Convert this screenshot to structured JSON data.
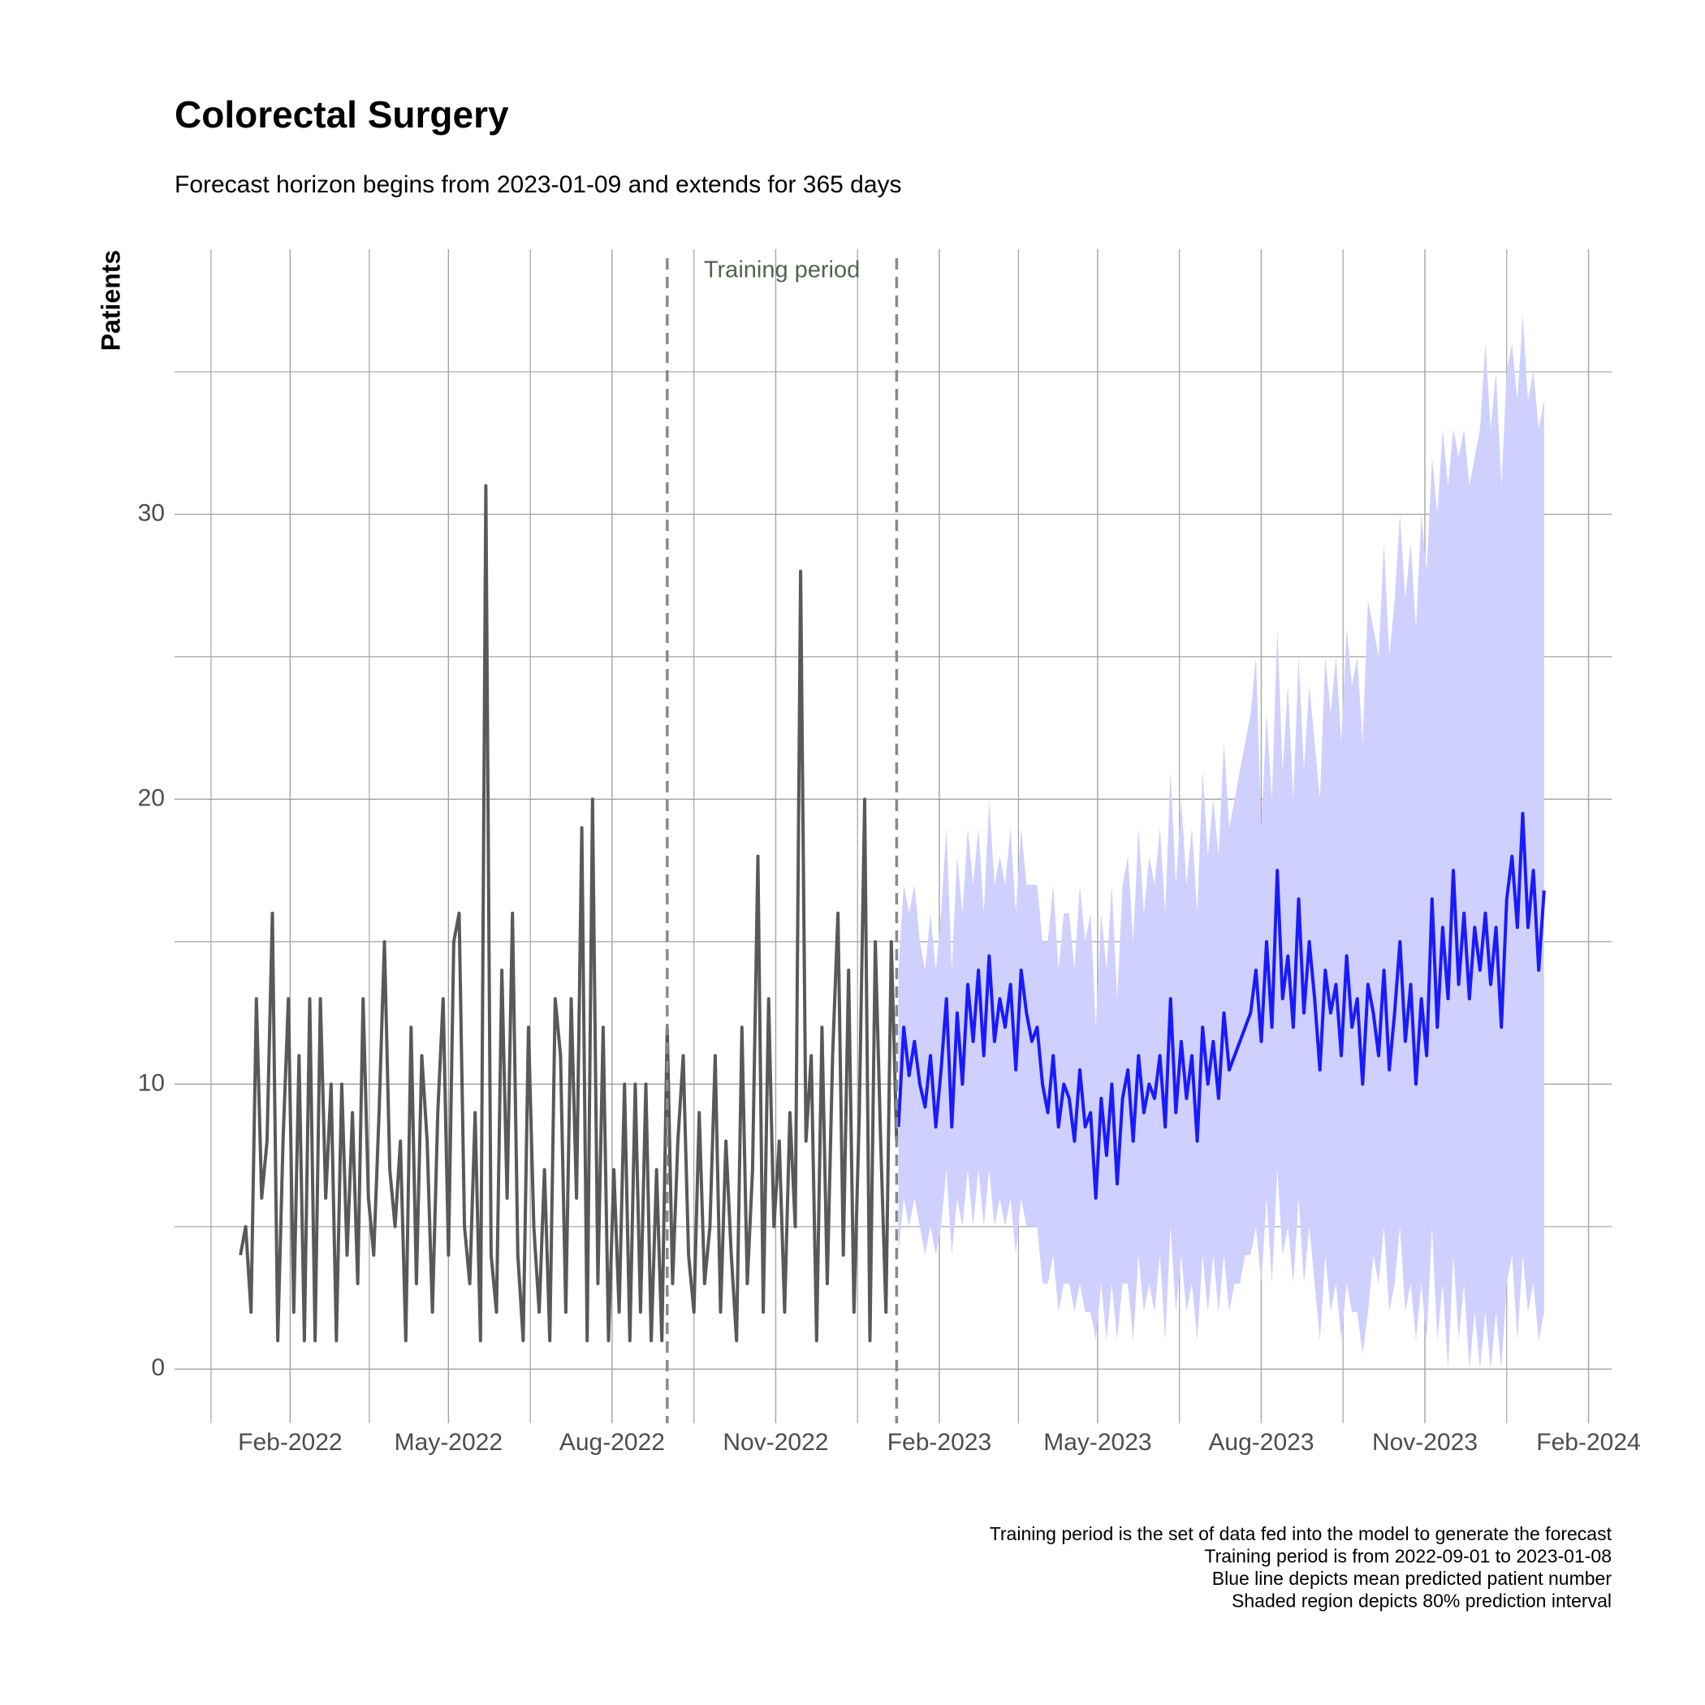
{
  "chart_data": {
    "type": "line",
    "title": "Colorectal Surgery",
    "subtitle": "Forecast horizon begins from 2023-01-09 and extends for 365 days",
    "y_label": "Patients",
    "annotation": "Training period",
    "caption": [
      "Training period is the set of data fed into the model to generate the forecast",
      "Training period is from 2022-09-01 to 2023-01-08",
      "Blue line depicts mean predicted patient number",
      "Shaded region depicts 80% prediction interval"
    ],
    "xlim": [
      "2021-11-28",
      "2024-02-14"
    ],
    "xticks": [
      {
        "value": "2022-02-01",
        "label": "Feb-2022"
      },
      {
        "value": "2022-05-01",
        "label": "May-2022"
      },
      {
        "value": "2022-08-01",
        "label": "Aug-2022"
      },
      {
        "value": "2022-11-01",
        "label": "Nov-2022"
      },
      {
        "value": "2023-02-01",
        "label": "Feb-2023"
      },
      {
        "value": "2023-05-01",
        "label": "May-2023"
      },
      {
        "value": "2023-08-01",
        "label": "Aug-2023"
      },
      {
        "value": "2023-11-01",
        "label": "Nov-2023"
      },
      {
        "value": "2024-02-01",
        "label": "Feb-2024"
      }
    ],
    "ylim": [
      -1.9,
      39.3
    ],
    "yticks": [
      0,
      10,
      20,
      30
    ],
    "grid": true,
    "vlines": [
      "2022-09-01",
      "2023-01-08"
    ],
    "series": [
      {
        "color": "#595959",
        "x": [
          "2022-01-04",
          "2022-01-07",
          "2022-01-10",
          "2022-01-13",
          "2022-01-16",
          "2022-01-19",
          "2022-01-22",
          "2022-01-25",
          "2022-01-28",
          "2022-01-31",
          "2022-02-03",
          "2022-02-06",
          "2022-02-09",
          "2022-02-12",
          "2022-02-15",
          "2022-02-18",
          "2022-02-21",
          "2022-02-24",
          "2022-02-27",
          "2022-03-02",
          "2022-03-05",
          "2022-03-08",
          "2022-03-11",
          "2022-03-14",
          "2022-03-17",
          "2022-03-20",
          "2022-03-23",
          "2022-03-26",
          "2022-03-29",
          "2022-04-01",
          "2022-04-04",
          "2022-04-07",
          "2022-04-10",
          "2022-04-13",
          "2022-04-16",
          "2022-04-19",
          "2022-04-22",
          "2022-04-25",
          "2022-04-28",
          "2022-05-01",
          "2022-05-04",
          "2022-05-07",
          "2022-05-10",
          "2022-05-13",
          "2022-05-16",
          "2022-05-19",
          "2022-05-22",
          "2022-05-25",
          "2022-05-28",
          "2022-05-31",
          "2022-06-03",
          "2022-06-06",
          "2022-06-09",
          "2022-06-12",
          "2022-06-15",
          "2022-06-18",
          "2022-06-21",
          "2022-06-24",
          "2022-06-27",
          "2022-06-30",
          "2022-07-03",
          "2022-07-06",
          "2022-07-09",
          "2022-07-12",
          "2022-07-15",
          "2022-07-18",
          "2022-07-21",
          "2022-07-24",
          "2022-07-27",
          "2022-07-30",
          "2022-08-02",
          "2022-08-05",
          "2022-08-08",
          "2022-08-11",
          "2022-08-14",
          "2022-08-17",
          "2022-08-20",
          "2022-08-23",
          "2022-08-26",
          "2022-08-29",
          "2022-09-01",
          "2022-09-04",
          "2022-09-07",
          "2022-09-10",
          "2022-09-13",
          "2022-09-16",
          "2022-09-19",
          "2022-09-22",
          "2022-09-25",
          "2022-09-28",
          "2022-10-01",
          "2022-10-04",
          "2022-10-07",
          "2022-10-10",
          "2022-10-13",
          "2022-10-16",
          "2022-10-19",
          "2022-10-22",
          "2022-10-25",
          "2022-10-28",
          "2022-10-31",
          "2022-11-03",
          "2022-11-06",
          "2022-11-09",
          "2022-11-12",
          "2022-11-15",
          "2022-11-18",
          "2022-11-21",
          "2022-11-24",
          "2022-11-27",
          "2022-11-30",
          "2022-12-03",
          "2022-12-06",
          "2022-12-09",
          "2022-12-12",
          "2022-12-15",
          "2022-12-18",
          "2022-12-21",
          "2022-12-24",
          "2022-12-27",
          "2022-12-30",
          "2023-01-02",
          "2023-01-05",
          "2023-01-08"
        ],
        "values": [
          4,
          5,
          2,
          13,
          6,
          8,
          16,
          1,
          8,
          13,
          2,
          11,
          1,
          13,
          1,
          13,
          6,
          10,
          1,
          10,
          4,
          9,
          3,
          13,
          6,
          4,
          9,
          15,
          7,
          5,
          8,
          1,
          12,
          3,
          11,
          8,
          2,
          9,
          13,
          4,
          15,
          16,
          5,
          3,
          9,
          1,
          31,
          4,
          2,
          14,
          6,
          16,
          4,
          1,
          12,
          5,
          2,
          7,
          1,
          13,
          11,
          2,
          13,
          6,
          19,
          1,
          20,
          3,
          12,
          1,
          7,
          2,
          10,
          1,
          10,
          2,
          10,
          1,
          7,
          1,
          12,
          3,
          8,
          11,
          4,
          2,
          9,
          3,
          5,
          11,
          2,
          8,
          4,
          1,
          12,
          3,
          7,
          18,
          2,
          13,
          5,
          8,
          2,
          9,
          5,
          28,
          8,
          11,
          1,
          12,
          3,
          11,
          16,
          4,
          14,
          2,
          9,
          20,
          1,
          15,
          8,
          2,
          15,
          8
        ]
      },
      {
        "color": "#1a1aff",
        "band_color": "#d0d0ff",
        "x": [
          "2023-01-09",
          "2023-01-12",
          "2023-01-15",
          "2023-01-18",
          "2023-01-21",
          "2023-01-24",
          "2023-01-27",
          "2023-01-30",
          "2023-02-02",
          "2023-02-05",
          "2023-02-08",
          "2023-02-11",
          "2023-02-14",
          "2023-02-17",
          "2023-02-20",
          "2023-02-23",
          "2023-02-26",
          "2023-03-01",
          "2023-03-04",
          "2023-03-07",
          "2023-03-10",
          "2023-03-13",
          "2023-03-16",
          "2023-03-19",
          "2023-03-22",
          "2023-03-25",
          "2023-03-28",
          "2023-03-31",
          "2023-04-03",
          "2023-04-06",
          "2023-04-09",
          "2023-04-12",
          "2023-04-15",
          "2023-04-18",
          "2023-04-21",
          "2023-04-24",
          "2023-04-27",
          "2023-04-30",
          "2023-05-03",
          "2023-05-06",
          "2023-05-09",
          "2023-05-12",
          "2023-05-15",
          "2023-05-18",
          "2023-05-21",
          "2023-05-24",
          "2023-05-27",
          "2023-05-30",
          "2023-06-02",
          "2023-06-05",
          "2023-06-08",
          "2023-06-11",
          "2023-06-14",
          "2023-06-17",
          "2023-06-20",
          "2023-06-23",
          "2023-06-26",
          "2023-06-29",
          "2023-07-02",
          "2023-07-05",
          "2023-07-08",
          "2023-07-11",
          "2023-07-14",
          "2023-07-17",
          "2023-07-20",
          "2023-07-23",
          "2023-07-26",
          "2023-07-29",
          "2023-08-01",
          "2023-08-04",
          "2023-08-07",
          "2023-08-10",
          "2023-08-13",
          "2023-08-16",
          "2023-08-19",
          "2023-08-22",
          "2023-08-25",
          "2023-08-28",
          "2023-08-31",
          "2023-09-03",
          "2023-09-06",
          "2023-09-09",
          "2023-09-12",
          "2023-09-15",
          "2023-09-18",
          "2023-09-21",
          "2023-09-24",
          "2023-09-27",
          "2023-09-30",
          "2023-10-03",
          "2023-10-06",
          "2023-10-09",
          "2023-10-12",
          "2023-10-15",
          "2023-10-18",
          "2023-10-21",
          "2023-10-24",
          "2023-10-27",
          "2023-10-30",
          "2023-11-02",
          "2023-11-05",
          "2023-11-08",
          "2023-11-11",
          "2023-11-14",
          "2023-11-17",
          "2023-11-20",
          "2023-11-23",
          "2023-11-26",
          "2023-11-29",
          "2023-12-02",
          "2023-12-05",
          "2023-12-08",
          "2023-12-11",
          "2023-12-14",
          "2023-12-17",
          "2023-12-20",
          "2023-12-23",
          "2023-12-26",
          "2023-12-29",
          "2024-01-01",
          "2024-01-04",
          "2024-01-07"
        ],
        "values": [
          8.5,
          12.0,
          10.3,
          11.5,
          10.0,
          9.2,
          11.0,
          8.5,
          10.5,
          13.0,
          8.5,
          12.5,
          10.0,
          13.5,
          11.5,
          14.0,
          11.0,
          14.5,
          11.5,
          13.0,
          12.0,
          13.5,
          10.5,
          14.0,
          12.5,
          11.5,
          12.0,
          10.0,
          9.0,
          11.0,
          8.5,
          10.0,
          9.5,
          8.0,
          10.5,
          8.5,
          9.0,
          6.0,
          9.5,
          7.5,
          10.0,
          6.5,
          9.5,
          10.5,
          8.0,
          11.0,
          9.0,
          10.0,
          9.5,
          11.0,
          8.5,
          13.0,
          9.0,
          11.5,
          9.5,
          11.0,
          8.0,
          12.0,
          10.0,
          11.5,
          9.5,
          12.5,
          10.5,
          11.0,
          11.5,
          12.0,
          12.5,
          14.0,
          11.5,
          15.0,
          12.0,
          17.5,
          13.0,
          14.5,
          12.0,
          16.5,
          12.5,
          15.0,
          13.0,
          10.5,
          14.0,
          12.5,
          13.5,
          11.0,
          14.5,
          12.0,
          13.0,
          10.0,
          13.5,
          12.5,
          11.0,
          14.0,
          10.5,
          12.5,
          15.0,
          11.5,
          13.5,
          10.0,
          13.0,
          11.0,
          16.5,
          12.0,
          15.5,
          13.0,
          17.5,
          13.5,
          16.0,
          13.0,
          15.5,
          14.0,
          16.0,
          13.5,
          15.5,
          12.0,
          16.5,
          18.0,
          15.5,
          19.5,
          15.5,
          17.5,
          14.0,
          16.8
        ],
        "lower": [
          4,
          6,
          5,
          6,
          5,
          4,
          5,
          4,
          5,
          7,
          4,
          6,
          5,
          7,
          5,
          7,
          5,
          7,
          5,
          6,
          5,
          6,
          4,
          6,
          5,
          5,
          5,
          3,
          3,
          4,
          2,
          3,
          3,
          2,
          3,
          2,
          2,
          1,
          3,
          1,
          3,
          1,
          3,
          3,
          1,
          4,
          2,
          3,
          2,
          4,
          1,
          5,
          2,
          4,
          2,
          3,
          1,
          4,
          2,
          4,
          2,
          4,
          2,
          3,
          3,
          4,
          4,
          5,
          3,
          6,
          3,
          7,
          4,
          5,
          3,
          6,
          3,
          5,
          3,
          1,
          4,
          2,
          3,
          1,
          3,
          2,
          2,
          0.5,
          2,
          4,
          3,
          5,
          2,
          3,
          5,
          2,
          3,
          1,
          3,
          1,
          5,
          1,
          3,
          0,
          4,
          1,
          3,
          0,
          2,
          0,
          2,
          0,
          2,
          0,
          3,
          4,
          1,
          4,
          2,
          3,
          1,
          2
        ],
        "upper": [
          14,
          17,
          16,
          17,
          15,
          14,
          16,
          14,
          16,
          19,
          14,
          18,
          16,
          19,
          17,
          19,
          16,
          20,
          17,
          18,
          17,
          19,
          16,
          19,
          17,
          17,
          17,
          15,
          15,
          17,
          14,
          16,
          16,
          14,
          17,
          15,
          16,
          12,
          16,
          14,
          17,
          13,
          17,
          18,
          15,
          19,
          16,
          18,
          17,
          19,
          16,
          21,
          17,
          20,
          17,
          19,
          16,
          21,
          18,
          20,
          18,
          22,
          19,
          20,
          21,
          22,
          23,
          25,
          19,
          23,
          20,
          26,
          21,
          24,
          20,
          25,
          21,
          24,
          22,
          20,
          25,
          23,
          25,
          22,
          26,
          24,
          25,
          22,
          27,
          26,
          25,
          29,
          25,
          27,
          30,
          27,
          29,
          26,
          30,
          28,
          32,
          30,
          33,
          31,
          33,
          32,
          33,
          31,
          32,
          33,
          36,
          33,
          35,
          31,
          35,
          36,
          34,
          37,
          34,
          35,
          33,
          34
        ]
      }
    ]
  }
}
